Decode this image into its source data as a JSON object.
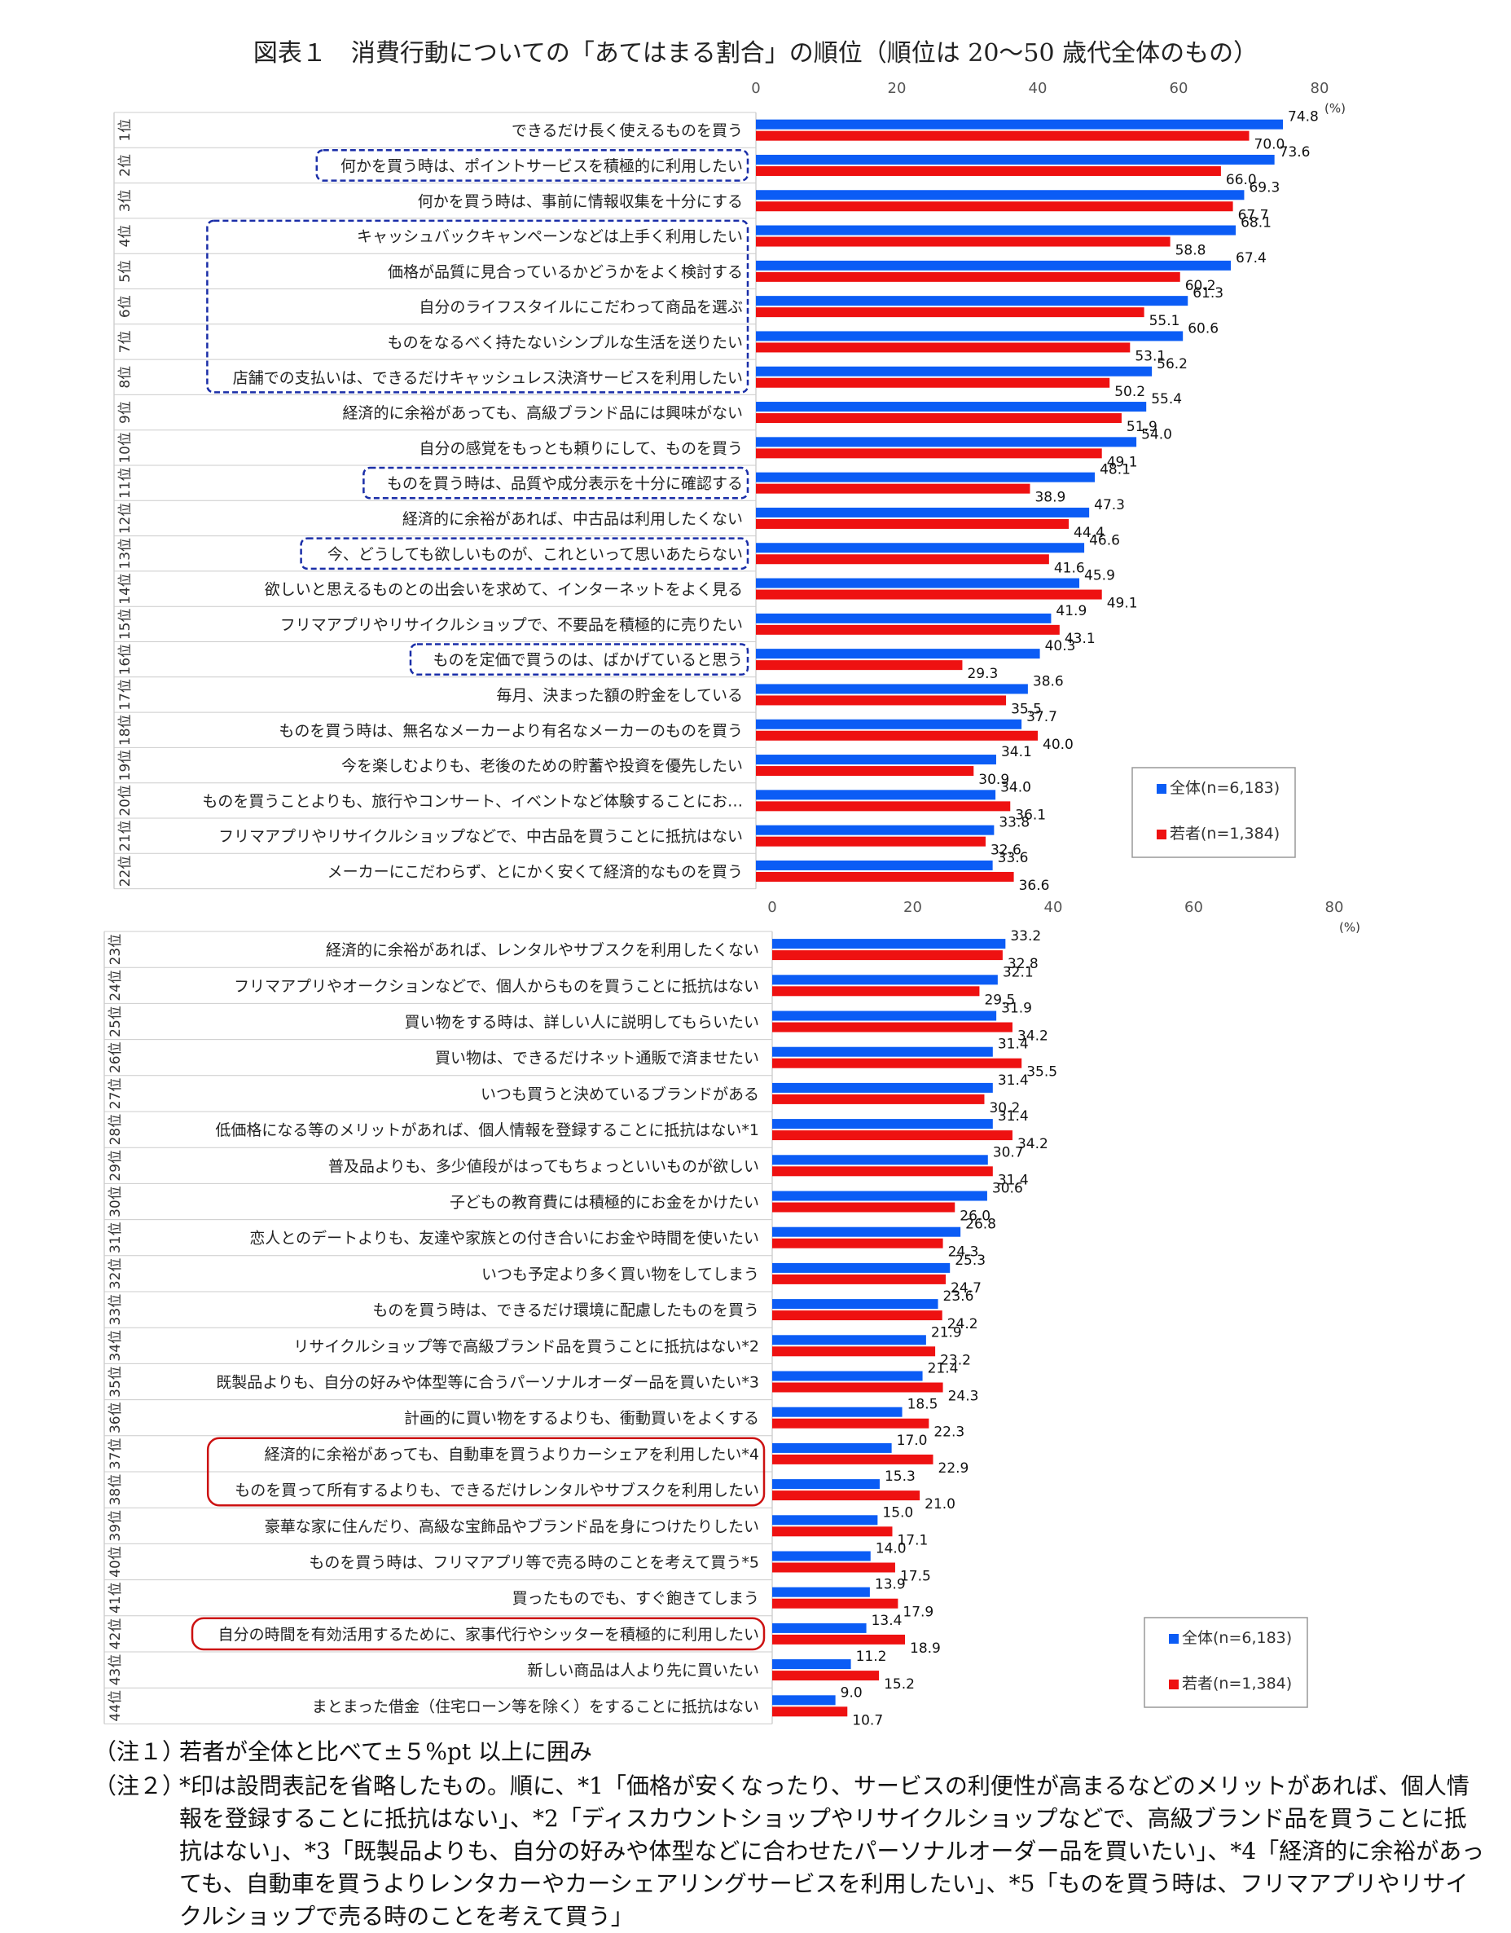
{
  "title": "図表１　消費行動についての「あてはまる割合」の順位（順位は 20～50 歳代全体のもの）",
  "chart_data": [
    {
      "type": "bar",
      "orientation": "horizontal",
      "xlim": [
        0,
        80
      ],
      "xticks": [
        0,
        20,
        40,
        60,
        80
      ],
      "unit": "(%)",
      "legend": {
        "placement": "right",
        "entries": [
          "全体(n=6,183)",
          "若者(n=1,384)"
        ]
      },
      "colors": {
        "all": "#0b5cf5",
        "young": "#ee1111"
      },
      "ranks": [
        "1位",
        "2位",
        "3位",
        "4位",
        "5位",
        "6位",
        "7位",
        "8位",
        "9位",
        "10位",
        "11位",
        "12位",
        "13位",
        "14位",
        "15位",
        "16位",
        "17位",
        "18位",
        "19位",
        "20位",
        "21位",
        "22位"
      ],
      "categories": [
        "できるだけ長く使えるものを買う",
        "何かを買う時は、ポイントサービスを積極的に利用したい",
        "何かを買う時は、事前に情報収集を十分にする",
        "キャッシュバックキャンペーンなどは上手く利用したい",
        "価格が品質に見合っているかどうかをよく検討する",
        "自分のライフスタイルにこだわって商品を選ぶ",
        "ものをなるべく持たないシンプルな生活を送りたい",
        "店舗での支払いは、できるだけキャッシュレス決済サービスを利用したい",
        "経済的に余裕があっても、高級ブランド品には興味がない",
        "自分の感覚をもっとも頼りにして、ものを買う",
        "ものを買う時は、品質や成分表示を十分に確認する",
        "経済的に余裕があれば、中古品は利用したくない",
        "今、どうしても欲しいものが、これといって思いあたらない",
        "欲しいと思えるものとの出会いを求めて、インターネットをよく見る",
        "フリマアプリやリサイクルショップで、不要品を積極的に売りたい",
        "ものを定価で買うのは、ばかげていると思う",
        "毎月、決まった額の貯金をしている",
        "ものを買う時は、無名なメーカーより有名なメーカーのものを買う",
        "今を楽しむよりも、老後のための貯蓄や投資を優先したい",
        "ものを買うことよりも、旅行やコンサート、イベントなど体験することにお…",
        "フリマアプリやリサイクルショップなどで、中古品を買うことに抵抗はない",
        "メーカーにこだわらず、とにかく安くて経済的なものを買う"
      ],
      "series": [
        {
          "name": "全体(n=6,183)",
          "values": [
            74.8,
            73.6,
            69.3,
            68.1,
            67.4,
            61.3,
            60.6,
            56.2,
            55.4,
            54.0,
            48.1,
            47.3,
            46.6,
            45.9,
            41.9,
            40.3,
            38.6,
            37.7,
            34.1,
            34.0,
            33.8,
            33.6
          ]
        },
        {
          "name": "若者(n=1,384)",
          "values": [
            70.0,
            66.0,
            67.7,
            58.8,
            60.2,
            55.1,
            53.1,
            50.2,
            51.9,
            49.1,
            38.9,
            44.4,
            41.6,
            49.1,
            43.1,
            29.3,
            35.5,
            40.0,
            30.9,
            36.1,
            32.6,
            36.6
          ]
        }
      ],
      "labels_all": [
        "74.8",
        "73.6",
        "69.3",
        "68.1",
        "67.4",
        "61.3",
        "60.6",
        "56.2",
        "55.4",
        "54.0",
        "48.1",
        "47.3",
        "46.6",
        "45.9",
        "41.9",
        "40.3",
        "38.6",
        "37.7",
        "34.1",
        "34.0",
        "33.8",
        "33.6"
      ],
      "labels_young": [
        "70.0",
        "66.0",
        "67.7",
        "58.8",
        "60.2",
        "55.1",
        "53.1",
        "50.2",
        "51.9",
        "49.1",
        "38.9",
        "44.4",
        "41.6",
        "49.1",
        "43.1",
        "29.3",
        "35.5",
        "40.0",
        "30.9",
        "36.1",
        "32.6",
        "36.6"
      ],
      "highlight_groups": [
        {
          "style": "blue-dashed",
          "ranks": [
            2
          ]
        },
        {
          "style": "blue-dashed",
          "ranks": [
            4,
            5,
            6,
            7,
            8
          ]
        },
        {
          "style": "blue-dashed",
          "ranks": [
            11
          ]
        },
        {
          "style": "blue-dashed",
          "ranks": [
            13
          ]
        },
        {
          "style": "blue-dashed",
          "ranks": [
            16
          ]
        }
      ]
    },
    {
      "type": "bar",
      "orientation": "horizontal",
      "xlim": [
        0,
        80
      ],
      "xticks": [
        0,
        20,
        40,
        60,
        80
      ],
      "unit": "(%)",
      "legend": {
        "placement": "right",
        "entries": [
          "全体(n=6,183)",
          "若者(n=1,384)"
        ]
      },
      "colors": {
        "all": "#0b5cf5",
        "young": "#ee1111"
      },
      "ranks": [
        "23位",
        "24位",
        "25位",
        "26位",
        "27位",
        "28位",
        "29位",
        "30位",
        "31位",
        "32位",
        "33位",
        "34位",
        "35位",
        "36位",
        "37位",
        "38位",
        "39位",
        "40位",
        "41位",
        "42位",
        "43位",
        "44位"
      ],
      "categories": [
        "経済的に余裕があれば、レンタルやサブスクを利用したくない",
        "フリマアプリやオークションなどで、個人からものを買うことに抵抗はない",
        "買い物をする時は、詳しい人に説明してもらいたい",
        "買い物は、できるだけネット通販で済ませたい",
        "いつも買うと決めているブランドがある",
        "低価格になる等のメリットがあれば、個人情報を登録することに抵抗はない*1",
        "普及品よりも、多少値段がはってもちょっといいものが欲しい",
        "子どもの教育費には積極的にお金をかけたい",
        "恋人とのデートよりも、友達や家族との付き合いにお金や時間を使いたい",
        "いつも予定より多く買い物をしてしまう",
        "ものを買う時は、できるだけ環境に配慮したものを買う",
        "リサイクルショップ等で高級ブランド品を買うことに抵抗はない*2",
        "既製品よりも、自分の好みや体型等に合うパーソナルオーダー品を買いたい*3",
        "計画的に買い物をするよりも、衝動買いをよくする",
        "経済的に余裕があっても、自動車を買うよりカーシェアを利用したい*4",
        "ものを買って所有するよりも、できるだけレンタルやサブスクを利用したい",
        "豪華な家に住んだり、高級な宝飾品やブランド品を身につけたりしたい",
        "ものを買う時は、フリマアプリ等で売る時のことを考えて買う*5",
        "買ったものでも、すぐ飽きてしまう",
        "自分の時間を有効活用するために、家事代行やシッターを積極的に利用したい",
        "新しい商品は人より先に買いたい",
        "まとまった借金（住宅ローン等を除く）をすることに抵抗はない"
      ],
      "series": [
        {
          "name": "全体(n=6,183)",
          "values": [
            33.2,
            32.1,
            31.9,
            31.4,
            31.4,
            31.4,
            30.7,
            30.6,
            26.8,
            25.3,
            23.6,
            21.9,
            21.4,
            18.5,
            17.0,
            15.3,
            15.0,
            14.0,
            13.9,
            13.4,
            11.2,
            9.0
          ]
        },
        {
          "name": "若者(n=1,384)",
          "values": [
            32.8,
            29.5,
            34.2,
            35.5,
            30.2,
            34.2,
            31.4,
            26.0,
            24.3,
            24.7,
            24.2,
            23.2,
            24.3,
            22.3,
            22.9,
            21.0,
            17.1,
            17.5,
            17.9,
            18.9,
            15.2,
            10.7
          ]
        }
      ],
      "labels_all": [
        "33.2",
        "32.1",
        "31.9",
        "31.4",
        "31.4",
        "31.4",
        "30.7",
        "30.6",
        "26.8",
        "25.3",
        "23.6",
        "21.9",
        "21.4",
        "18.5",
        "17.0",
        "15.3",
        "15.0",
        "14.0",
        "13.9",
        "13.4",
        "11.2",
        "9.0"
      ],
      "labels_young": [
        "32.8",
        "29.5",
        "34.2",
        "35.5",
        "30.2",
        "34.2",
        "31.4",
        "26.0",
        "24.3",
        "24.7",
        "24.2",
        "23.2",
        "24.3",
        "22.3",
        "22.9",
        "21.0",
        "17.1",
        "17.5",
        "17.9",
        "18.9",
        "15.2",
        "10.7"
      ],
      "highlight_groups": [
        {
          "style": "red-rounded",
          "ranks": [
            37,
            38
          ]
        },
        {
          "style": "red-rounded",
          "ranks": [
            42
          ]
        }
      ]
    }
  ],
  "notes": [
    {
      "label": "（注１）",
      "text": "若者が全体と比べて±５%pt 以上に囲み"
    },
    {
      "label": "（注２）",
      "text": "*印は設問表記を省略したもの。順に、*1「価格が安くなったり、サービスの利便性が高まるなどのメリットがあれば、個人情報を登録することに抵抗はない」、*2「ディスカウントショップやリサイクルショップなどで、高級ブランド品を買うことに抵抗はない」、*3「既製品よりも、自分の好みや体型などに合わせたパーソナルオーダー品を買いたい」、*4「経済的に余裕があっても、自動車を買うよりレンタカーやカーシェアリングサービスを利用したい」、*5「ものを買う時は、フリマアプリやリサイクルショップで売る時のことを考えて買う」"
    }
  ]
}
